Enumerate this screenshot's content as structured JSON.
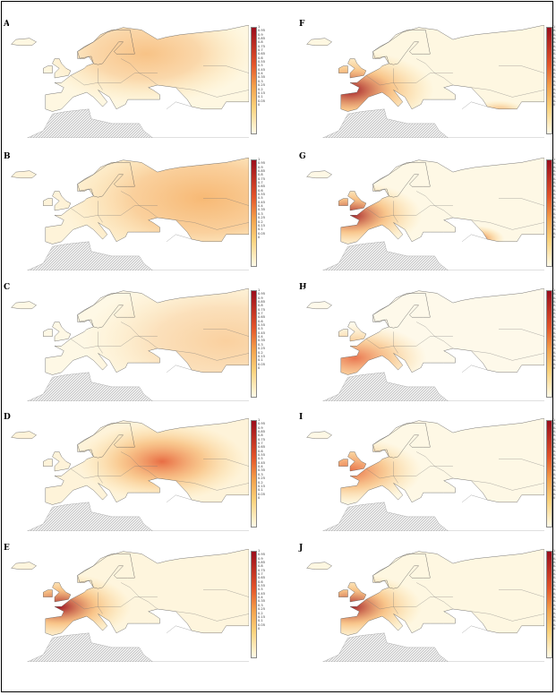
{
  "panels": [
    {
      "label": "A",
      "hotspots": [
        {
          "lon": 35,
          "lat": 60,
          "r": 0.45,
          "a": 0.6
        }
      ],
      "base": 0.25
    },
    {
      "label": "B",
      "hotspots": [
        {
          "lon": 60,
          "lat": 55,
          "r": 0.6,
          "a": 0.7
        }
      ],
      "base": 0.35
    },
    {
      "label": "C",
      "hotspots": [
        {
          "lon": 70,
          "lat": 50,
          "r": 0.6,
          "a": 0.45
        }
      ],
      "base": 0.2
    },
    {
      "label": "D",
      "hotspots": [
        {
          "lon": 42,
          "lat": 54,
          "r": 0.35,
          "a": 0.85
        }
      ],
      "base": 0.35
    },
    {
      "label": "E",
      "hotspots": [
        {
          "lon": -3,
          "lat": 48,
          "r": 0.3,
          "a": 0.95
        }
      ],
      "base": 0.3
    },
    {
      "label": "F",
      "hotspots": [
        {
          "lon": -5,
          "lat": 45,
          "r": 0.35,
          "a": 0.95
        },
        {
          "lon": 60,
          "lat": 35,
          "r": 0.12,
          "a": 0.7
        }
      ],
      "base": 0.25
    },
    {
      "label": "G",
      "hotspots": [
        {
          "lon": -5,
          "lat": 48,
          "r": 0.3,
          "a": 0.95
        },
        {
          "lon": 50,
          "lat": 38,
          "r": 0.12,
          "a": 0.9
        }
      ],
      "base": 0.2
    },
    {
      "label": "H",
      "hotspots": [
        {
          "lon": -3,
          "lat": 43,
          "r": 0.3,
          "a": 0.8
        }
      ],
      "base": 0.15
    },
    {
      "label": "I",
      "hotspots": [
        {
          "lon": -5,
          "lat": 50,
          "r": 0.3,
          "a": 0.85
        },
        {
          "lon": 48,
          "lat": 32,
          "r": 0.1,
          "a": 0.55
        }
      ],
      "base": 0.2
    },
    {
      "label": "J",
      "hotspots": [
        {
          "lon": -5,
          "lat": 48,
          "r": 0.3,
          "a": 0.95
        }
      ],
      "base": 0.25
    }
  ],
  "colorbar_ticks": [
    "1",
    "0.95",
    "0.9",
    "0.85",
    "0.8",
    "0.75",
    "0.7",
    "0.65",
    "0.6",
    "0.55",
    "0.5",
    "0.45",
    "0.4",
    "0.35",
    "0.3",
    "0.25",
    "0.2",
    "0.15",
    "0.1",
    "0.05",
    "0"
  ],
  "colors": {
    "low": "#fffbe8",
    "mid1": "#fbd27a",
    "mid2": "#f4a04a",
    "mid3": "#e4552a",
    "high": "#9b0d1c",
    "hatch": "#d9d9d9",
    "border": "#555555"
  }
}
